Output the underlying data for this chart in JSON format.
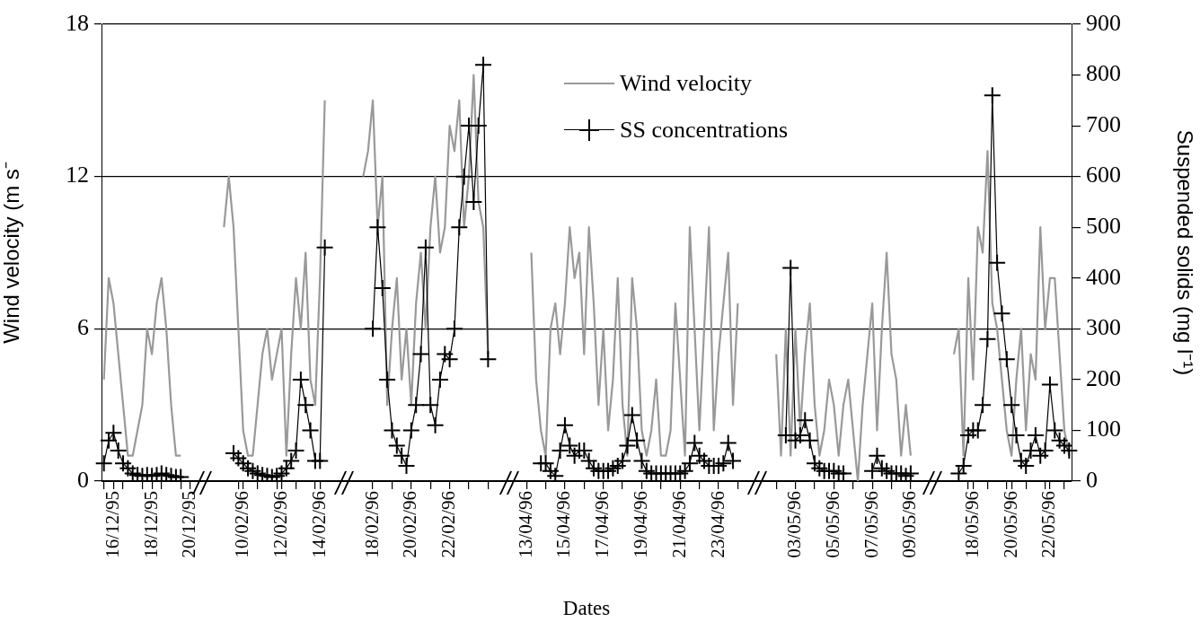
{
  "chart_data": {
    "type": "line",
    "xlabel": "Dates",
    "ylabel": "Wind velocity (m s⁻",
    "y2label": "Suspended solids (mg l⁻¹)",
    "categories": [
      null,
      null,
      "16/12/95",
      null,
      null,
      null,
      null,
      null,
      null,
      null,
      "18/12/95",
      null,
      null,
      null,
      null,
      null,
      null,
      null,
      "20/12/95",
      null,
      null,
      null,
      null,
      null,
      null,
      null,
      null,
      null,
      null,
      "10/02/96",
      null,
      null,
      null,
      null,
      null,
      null,
      null,
      "12/02/96",
      null,
      null,
      null,
      null,
      null,
      null,
      null,
      "14/02/96",
      null,
      null,
      null,
      null,
      null,
      null,
      null,
      null,
      null,
      null,
      "18/02/96",
      null,
      null,
      null,
      null,
      null,
      null,
      null,
      "20/02/96",
      null,
      null,
      null,
      null,
      null,
      null,
      null,
      "22/02/96",
      null,
      null,
      null,
      null,
      null,
      null,
      null,
      null,
      null,
      null,
      null,
      null,
      null,
      null,
      null,
      "13/04/96",
      null,
      null,
      null,
      null,
      null,
      null,
      null,
      "15/04/96",
      null,
      null,
      null,
      null,
      null,
      null,
      null,
      "17/04/96",
      null,
      null,
      null,
      null,
      null,
      null,
      null,
      "19/04/96",
      null,
      null,
      null,
      null,
      null,
      null,
      null,
      "21/04/96",
      null,
      null,
      null,
      null,
      null,
      null,
      null,
      "23/04/96",
      null,
      null,
      null,
      null,
      null,
      null,
      null,
      null,
      null,
      null,
      null,
      null,
      null,
      null,
      null,
      "03/05/96",
      null,
      null,
      null,
      null,
      null,
      null,
      null,
      "05/05/96",
      null,
      null,
      null,
      null,
      null,
      null,
      null,
      "07/05/96",
      null,
      null,
      null,
      null,
      null,
      null,
      null,
      "09/05/96",
      null,
      null,
      null,
      null,
      null,
      null,
      null,
      null,
      null,
      null,
      null,
      null,
      "18/05/96",
      null,
      null,
      null,
      null,
      null,
      null,
      null,
      "20/05/96",
      null,
      null,
      null,
      null,
      null,
      null,
      null,
      "22/05/96",
      null,
      null,
      null,
      null
    ],
    "series": [
      {
        "name": "Wind velocity",
        "color": "#999999",
        "marker": "none",
        "values": [
          4,
          8,
          7,
          5,
          3,
          1,
          1,
          2,
          3,
          6,
          5,
          7,
          8,
          6,
          3,
          1,
          1,
          null,
          null,
          null,
          null,
          null,
          null,
          null,
          null,
          10,
          12,
          10,
          6,
          2,
          1,
          1,
          3,
          5,
          6,
          4,
          5,
          6,
          1,
          5,
          8,
          6,
          9,
          4,
          3,
          8,
          15,
          null,
          null,
          null,
          null,
          null,
          null,
          null,
          12,
          13,
          15,
          10,
          12,
          3,
          6,
          8,
          4,
          6,
          3,
          7,
          9,
          6,
          10,
          12,
          9,
          10,
          14,
          13,
          15,
          10,
          12,
          16,
          11,
          10,
          5,
          null,
          null,
          null,
          null,
          null,
          null,
          null,
          null,
          9,
          4,
          2,
          1,
          6,
          7,
          5,
          7,
          10,
          8,
          9,
          5,
          10,
          7,
          3,
          6,
          2,
          4,
          8,
          3,
          1,
          8,
          6,
          2,
          1,
          2,
          4,
          1,
          1,
          2,
          7,
          4,
          1,
          10,
          6,
          2,
          6,
          10,
          2,
          5,
          7,
          9,
          3,
          7,
          null,
          null,
          null,
          null,
          null,
          null,
          null,
          5,
          1,
          6,
          1,
          6,
          2,
          5,
          7,
          3,
          1,
          2,
          4,
          3,
          1,
          3,
          4,
          2,
          0,
          3,
          5,
          7,
          2,
          6,
          9,
          5,
          4,
          1,
          3,
          1,
          null,
          null,
          null,
          null,
          null,
          null,
          null,
          null,
          5,
          6,
          1,
          8,
          4,
          10,
          9,
          13,
          7,
          6,
          4,
          2,
          1,
          4,
          6,
          2,
          5,
          4,
          10,
          6,
          8,
          8,
          5,
          2,
          1
        ]
      },
      {
        "name": "SS concentrations",
        "color": "#000000",
        "marker": "cross",
        "axis": "y2",
        "values": [
          35,
          80,
          95,
          60,
          35,
          25,
          15,
          12,
          10,
          12,
          10,
          12,
          15,
          12,
          10,
          8,
          8,
          null,
          null,
          null,
          null,
          null,
          null,
          null,
          null,
          null,
          null,
          55,
          45,
          35,
          25,
          20,
          15,
          12,
          10,
          8,
          10,
          15,
          25,
          40,
          60,
          200,
          150,
          100,
          40,
          40,
          460,
          null,
          null,
          null,
          null,
          null,
          null,
          null,
          null,
          null,
          300,
          500,
          380,
          200,
          100,
          70,
          50,
          30,
          100,
          150,
          250,
          460,
          150,
          110,
          200,
          250,
          240,
          300,
          500,
          600,
          700,
          550,
          700,
          820,
          240,
          null,
          null,
          null,
          null,
          null,
          null,
          null,
          null,
          null,
          null,
          35,
          35,
          20,
          10,
          60,
          110,
          70,
          50,
          60,
          60,
          40,
          25,
          20,
          20,
          20,
          25,
          30,
          40,
          70,
          130,
          80,
          40,
          20,
          15,
          15,
          15,
          15,
          15,
          15,
          15,
          20,
          35,
          75,
          50,
          40,
          30,
          30,
          30,
          35,
          75,
          40,
          null,
          null,
          null,
          null,
          null,
          null,
          null,
          null,
          null,
          null,
          90,
          420,
          80,
          90,
          120,
          80,
          35,
          25,
          20,
          20,
          20,
          15,
          15,
          null,
          null,
          null,
          null,
          null,
          20,
          50,
          25,
          20,
          15,
          15,
          15,
          10,
          15,
          null,
          null,
          null,
          null,
          null,
          null,
          null,
          null,
          null,
          15,
          30,
          90,
          100,
          100,
          150,
          280,
          760,
          430,
          330,
          240,
          150,
          90,
          40,
          30,
          60,
          90,
          50,
          60,
          190,
          100,
          80,
          70,
          60
        ]
      }
    ],
    "ylim": [
      0,
      18
    ],
    "yticks": [
      0,
      6,
      12,
      18
    ],
    "y2lim": [
      0,
      900
    ],
    "y2ticks": [
      0,
      100,
      200,
      300,
      400,
      500,
      600,
      700,
      800,
      900
    ],
    "grid": "y",
    "legend": "top right"
  }
}
